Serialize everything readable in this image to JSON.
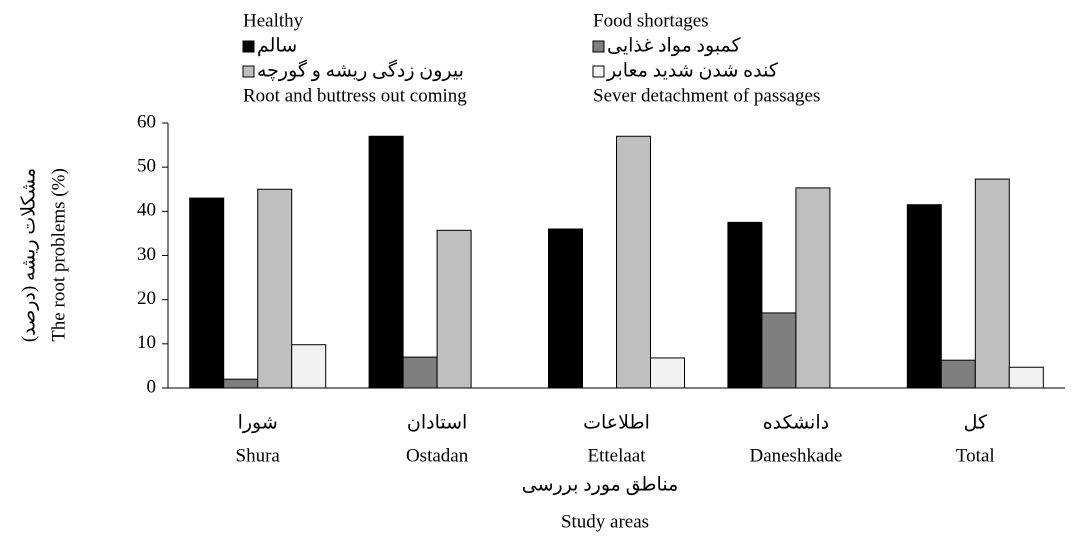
{
  "chart_data": {
    "type": "bar",
    "y_label_fa": "مشکلات ریشه (درصد)",
    "y_label": "The root problems (%)",
    "x_label_fa": "مناطق مورد بررسی",
    "x_label": "Study areas",
    "categories_fa": [
      "شورا",
      "استادان",
      "اطلاعات",
      "دانشکده",
      "کل"
    ],
    "categories": [
      "Shura",
      "Ostadan",
      "Ettelaat",
      "Daneshkade",
      "Total"
    ],
    "series": [
      {
        "name": "Healthy",
        "name_fa": "سالم",
        "color": "#000000",
        "values": [
          43,
          57,
          36,
          37.5,
          41.5
        ]
      },
      {
        "name": "Food shortages",
        "name_fa": "کمبود مواد غذایی",
        "color": "#7f7f7f",
        "values": [
          2,
          7,
          0,
          17,
          6.3
        ]
      },
      {
        "name": "Root and buttress out coming",
        "name_fa": "بیرون زدگی ریشه و گورچه",
        "color": "#bfbfbf",
        "values": [
          45,
          35.7,
          57,
          45.3,
          47.3
        ]
      },
      {
        "name": "Sever detachment of passages",
        "name_fa": "کنده شدن شدید معابر",
        "color": "#f2f2f2",
        "values": [
          9.8,
          0,
          6.8,
          0,
          4.7
        ]
      }
    ],
    "ylim": [
      0,
      60
    ],
    "yticks": [
      0,
      10,
      20,
      30,
      40,
      50,
      60
    ],
    "grid": false
  }
}
